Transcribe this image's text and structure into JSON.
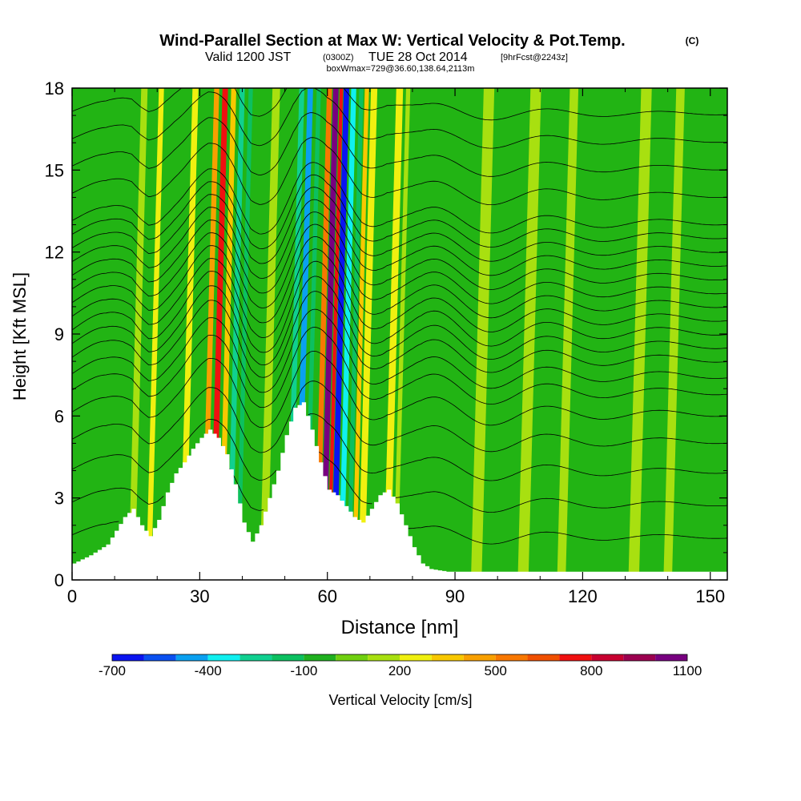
{
  "title": {
    "main": "Wind-Parallel Section at Max W: Vertical Velocity & Pot.Temp.",
    "copyright": "(C)",
    "line2_prefix": "Valid 1200 JST",
    "line2_zulu": "(0300Z)",
    "line2_date": "TUE 28 Oct 2014",
    "line2_fcst": "[9hrFcst@2243z]",
    "line3": "boxWmax=729@36.60,138.64,2113m"
  },
  "chart_data": {
    "type": "heatmap",
    "xlabel": "Distance [nm]",
    "ylabel": "Height [Kft MSL]",
    "xlim": [
      0,
      154
    ],
    "ylim": [
      0,
      18
    ],
    "x_ticks": [
      "0",
      "30",
      "60",
      "90",
      "120",
      "150"
    ],
    "y_ticks": [
      "0",
      "3",
      "6",
      "9",
      "12",
      "15",
      "18"
    ],
    "colorbar": {
      "label": "Vertical Velocity [cm/s]",
      "tick_labels": [
        "-700",
        "-400",
        "-100",
        "200",
        "500",
        "800",
        "1100"
      ],
      "levels": [
        -700,
        -600,
        -500,
        -400,
        -300,
        -200,
        -100,
        0,
        100,
        200,
        300,
        400,
        500,
        600,
        700,
        800,
        900,
        1000,
        1100
      ],
      "colors": [
        "#0a14f0",
        "#0a50f0",
        "#0aa0f0",
        "#10f0f0",
        "#10d090",
        "#0cc060",
        "#20b020",
        "#70d010",
        "#a8e010",
        "#f0f010",
        "#f8c800",
        "#f8a000",
        "#f87800",
        "#f05000",
        "#f01010",
        "#c80030",
        "#9c0050",
        "#780080"
      ]
    },
    "background_color": "#22b414",
    "terrain_color": "#ffffff",
    "contour_color": "#000000",
    "terrain_profile": {
      "x": [
        0,
        4,
        8,
        10,
        12,
        14,
        16,
        18,
        20,
        22,
        24,
        26,
        28,
        30,
        32,
        34,
        36,
        38,
        40,
        42,
        44,
        46,
        48,
        50,
        52,
        54,
        56,
        58,
        60,
        62,
        64,
        66,
        68,
        70,
        72,
        74,
        76,
        78,
        80,
        82,
        84,
        86,
        88,
        90,
        100,
        110,
        120,
        130,
        140,
        154
      ],
      "y": [
        0.6,
        0.9,
        1.3,
        1.8,
        2.3,
        2.6,
        2.0,
        1.6,
        2.2,
        3.2,
        3.9,
        4.3,
        4.8,
        5.2,
        5.5,
        5.2,
        4.6,
        3.5,
        2.1,
        1.4,
        2.0,
        3.0,
        4.0,
        5.3,
        6.3,
        6.5,
        5.5,
        4.3,
        3.3,
        3.1,
        2.7,
        2.3,
        2.1,
        2.6,
        3.1,
        3.3,
        2.8,
        2.0,
        1.2,
        0.6,
        0.4,
        0.35,
        0.3,
        0.3,
        0.3,
        0.3,
        0.3,
        0.3,
        0.3,
        0.3
      ]
    },
    "vertical_velocity_bands": [
      {
        "x": 14,
        "w": 1.5,
        "value": 150
      },
      {
        "x": 18,
        "w": 1.2,
        "value": 250
      },
      {
        "x": 26,
        "w": 1.4,
        "value": 200
      },
      {
        "x": 31,
        "w": 1.2,
        "value": 400
      },
      {
        "x": 33,
        "w": 1.3,
        "value": 700
      },
      {
        "x": 35,
        "w": 1.2,
        "value": 350
      },
      {
        "x": 37,
        "w": 1.2,
        "value": -300
      },
      {
        "x": 39,
        "w": 1.0,
        "value": -150
      },
      {
        "x": 45,
        "w": 1.8,
        "value": 150
      },
      {
        "x": 51,
        "w": 1.2,
        "value": -250
      },
      {
        "x": 53,
        "w": 1.3,
        "value": -450
      },
      {
        "x": 55,
        "w": 1.0,
        "value": -200
      },
      {
        "x": 57.5,
        "w": 1.2,
        "value": 500
      },
      {
        "x": 59,
        "w": 1.3,
        "value": 1000
      },
      {
        "x": 60.3,
        "w": 0.8,
        "value": 750
      },
      {
        "x": 61.5,
        "w": 1.3,
        "value": -650
      },
      {
        "x": 63.2,
        "w": 1.2,
        "value": -400
      },
      {
        "x": 65,
        "w": 1.0,
        "value": -150
      },
      {
        "x": 66.3,
        "w": 1.0,
        "value": 350
      },
      {
        "x": 68,
        "w": 1.5,
        "value": 200
      },
      {
        "x": 74,
        "w": 1.6,
        "value": 250
      },
      {
        "x": 76,
        "w": 1.0,
        "value": 150
      },
      {
        "x": 95,
        "w": 2.5,
        "value": 100
      },
      {
        "x": 106,
        "w": 2.5,
        "value": 100
      },
      {
        "x": 115,
        "w": 2.0,
        "value": 100
      },
      {
        "x": 132,
        "w": 2.5,
        "value": 100
      },
      {
        "x": 140,
        "w": 2.0,
        "value": 100
      }
    ],
    "theta_levels": [
      1.5,
      2.7,
      3.9,
      5.0,
      6.0,
      6.8,
      7.4,
      8.0,
      8.5,
      9.0,
      9.5,
      10.0,
      10.5,
      11.0,
      11.5,
      12.0,
      12.5,
      13.0,
      14.0,
      15.0,
      16.0,
      17.0
    ]
  }
}
